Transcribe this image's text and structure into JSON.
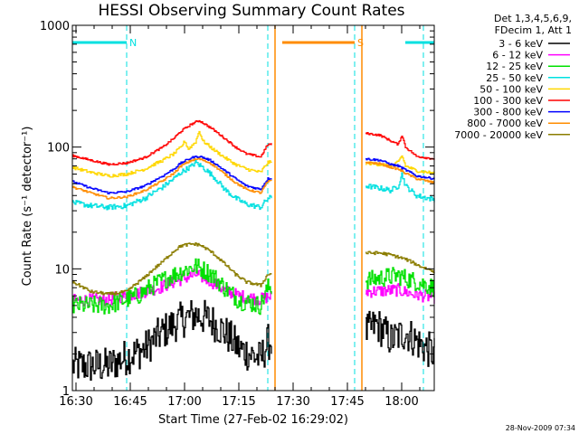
{
  "chart_data": {
    "type": "line",
    "title": "HESSI Observing Summary Count Rates",
    "xlabel": "Start Time (27-Feb-02 16:29:02)",
    "ylabel": "Count Rate (s⁻¹ detector⁻¹)",
    "y_scale": "log",
    "ylim": [
      1,
      1000
    ],
    "xlim_minutes": [
      0,
      100
    ],
    "x_tick_labels": [
      {
        "t": 1,
        "label": "16:30"
      },
      {
        "t": 16,
        "label": "16:45"
      },
      {
        "t": 31,
        "label": "17:00"
      },
      {
        "t": 46,
        "label": "17:15"
      },
      {
        "t": 61,
        "label": "17:30"
      },
      {
        "t": 76,
        "label": "17:45"
      },
      {
        "t": 91,
        "label": "18:00"
      }
    ],
    "y_tick_labels": [
      {
        "v": 1,
        "label": "1"
      },
      {
        "v": 10,
        "label": "10"
      },
      {
        "v": 100,
        "label": "100"
      },
      {
        "v": 1000,
        "label": "1000"
      }
    ],
    "legend_header": [
      "Det 1,3,4,5,6,9,",
      "FDecim 1, Att 1"
    ],
    "legend_position": "right",
    "footer_date": "28-Nov-2009 07:34",
    "gaps": [
      {
        "start": 55,
        "end": 81
      }
    ],
    "night_dashes": [
      15,
      54,
      78,
      97
    ],
    "night_color": "#00e0e0",
    "saa_color": "#ff8c00",
    "saa_lines": [
      56,
      80
    ],
    "flag_bars": [
      {
        "label": "N",
        "start": 0,
        "end": 15,
        "color": "#00e0e0"
      },
      {
        "label": "S",
        "start": 58,
        "end": 78,
        "color": "#ff8c00"
      },
      {
        "label": "",
        "start": 92,
        "end": 100,
        "color": "#00e0e0"
      }
    ],
    "series": [
      {
        "name": "3 - 6 keV",
        "color": "#000000",
        "noise": 0.35,
        "points": [
          [
            0,
            1.6
          ],
          [
            10,
            1.6
          ],
          [
            20,
            2.2
          ],
          [
            26,
            3.2
          ],
          [
            30,
            3.8
          ],
          [
            34,
            4.2
          ],
          [
            38,
            3.8
          ],
          [
            42,
            3
          ],
          [
            46,
            2.2
          ],
          [
            52,
            1.8
          ],
          [
            54,
            2.5
          ],
          [
            81,
            3
          ],
          [
            84,
            3.5
          ],
          [
            88,
            2.6
          ],
          [
            92,
            3
          ],
          [
            96,
            2.4
          ],
          [
            100,
            2.0
          ]
        ]
      },
      {
        "name": "6 - 12 keV",
        "color": "#ff00ff",
        "noise": 0.12,
        "points": [
          [
            0,
            5.5
          ],
          [
            10,
            5.6
          ],
          [
            18,
            6.3
          ],
          [
            24,
            7.0
          ],
          [
            30,
            8.2
          ],
          [
            34,
            9.0
          ],
          [
            38,
            8.0
          ],
          [
            42,
            6.6
          ],
          [
            46,
            6.0
          ],
          [
            52,
            5.6
          ],
          [
            54,
            5.9
          ],
          [
            81,
            6.5
          ],
          [
            86,
            6.6
          ],
          [
            90,
            6.7
          ],
          [
            94,
            6.2
          ],
          [
            100,
            5.8
          ]
        ]
      },
      {
        "name": "12 - 25 keV",
        "color": "#00e000",
        "noise": 0.18,
        "points": [
          [
            0,
            5.0
          ],
          [
            10,
            5.0
          ],
          [
            18,
            6.0
          ],
          [
            24,
            7.8
          ],
          [
            30,
            9.5
          ],
          [
            34,
            10.5
          ],
          [
            38,
            9.2
          ],
          [
            42,
            7.0
          ],
          [
            46,
            5.5
          ],
          [
            52,
            5.0
          ],
          [
            54,
            7.0
          ],
          [
            81,
            8.0
          ],
          [
            86,
            8.5
          ],
          [
            90,
            8.8
          ],
          [
            94,
            8.0
          ],
          [
            100,
            7.0
          ]
        ]
      },
      {
        "name": "25 - 50 keV",
        "color": "#00e0e0",
        "noise": 0.05,
        "points": [
          [
            0,
            35
          ],
          [
            5,
            33
          ],
          [
            10,
            32
          ],
          [
            15,
            33
          ],
          [
            20,
            38
          ],
          [
            25,
            47
          ],
          [
            28,
            55
          ],
          [
            30,
            62
          ],
          [
            33,
            70
          ],
          [
            34,
            75
          ],
          [
            36,
            68
          ],
          [
            39,
            57
          ],
          [
            42,
            45
          ],
          [
            45,
            38
          ],
          [
            48,
            34
          ],
          [
            52,
            32
          ],
          [
            54,
            38
          ],
          [
            81,
            48
          ],
          [
            85,
            46
          ],
          [
            88,
            44
          ],
          [
            90,
            48
          ],
          [
            91,
            60
          ],
          [
            92,
            48
          ],
          [
            95,
            40
          ],
          [
            100,
            37
          ]
        ]
      },
      {
        "name": "50 - 100 keV",
        "color": "#ffd700",
        "noise": 0.03,
        "points": [
          [
            0,
            68
          ],
          [
            5,
            62
          ],
          [
            10,
            58
          ],
          [
            15,
            60
          ],
          [
            20,
            66
          ],
          [
            25,
            78
          ],
          [
            28,
            88
          ],
          [
            30,
            100
          ],
          [
            31,
            112
          ],
          [
            32,
            96
          ],
          [
            34,
            110
          ],
          [
            35,
            135
          ],
          [
            36,
            112
          ],
          [
            39,
            95
          ],
          [
            42,
            82
          ],
          [
            45,
            72
          ],
          [
            48,
            66
          ],
          [
            52,
            62
          ],
          [
            54,
            75
          ],
          [
            81,
            74
          ],
          [
            85,
            72
          ],
          [
            88,
            70
          ],
          [
            90,
            75
          ],
          [
            91,
            85
          ],
          [
            92,
            70
          ],
          [
            95,
            64
          ],
          [
            100,
            61
          ]
        ]
      },
      {
        "name": "100 - 300 keV",
        "color": "#ff0000",
        "noise": 0.02,
        "points": [
          [
            0,
            85
          ],
          [
            5,
            78
          ],
          [
            10,
            72
          ],
          [
            15,
            74
          ],
          [
            20,
            82
          ],
          [
            25,
            100
          ],
          [
            28,
            118
          ],
          [
            30,
            135
          ],
          [
            33,
            155
          ],
          [
            35,
            165
          ],
          [
            38,
            145
          ],
          [
            42,
            118
          ],
          [
            45,
            100
          ],
          [
            48,
            88
          ],
          [
            52,
            83
          ],
          [
            54,
            105
          ],
          [
            81,
            130
          ],
          [
            85,
            125
          ],
          [
            88,
            112
          ],
          [
            90,
            105
          ],
          [
            91,
            125
          ],
          [
            92,
            100
          ],
          [
            95,
            84
          ],
          [
            100,
            80
          ]
        ]
      },
      {
        "name": "300 - 800 keV",
        "color": "#0000ff",
        "noise": 0.02,
        "points": [
          [
            0,
            52
          ],
          [
            5,
            46
          ],
          [
            10,
            42
          ],
          [
            15,
            43
          ],
          [
            20,
            48
          ],
          [
            25,
            58
          ],
          [
            28,
            66
          ],
          [
            30,
            74
          ],
          [
            33,
            82
          ],
          [
            35,
            84
          ],
          [
            38,
            78
          ],
          [
            42,
            64
          ],
          [
            45,
            55
          ],
          [
            48,
            48
          ],
          [
            52,
            45
          ],
          [
            54,
            55
          ],
          [
            81,
            80
          ],
          [
            85,
            78
          ],
          [
            88,
            72
          ],
          [
            90,
            70
          ],
          [
            92,
            65
          ],
          [
            95,
            58
          ],
          [
            100,
            55
          ]
        ]
      },
      {
        "name": "800 - 7000 keV",
        "color": "#ff8c00",
        "noise": 0.02,
        "points": [
          [
            0,
            47
          ],
          [
            5,
            42
          ],
          [
            10,
            38
          ],
          [
            15,
            39
          ],
          [
            20,
            44
          ],
          [
            25,
            53
          ],
          [
            28,
            61
          ],
          [
            30,
            70
          ],
          [
            33,
            78
          ],
          [
            35,
            80
          ],
          [
            38,
            74
          ],
          [
            42,
            60
          ],
          [
            45,
            51
          ],
          [
            48,
            45
          ],
          [
            52,
            42
          ],
          [
            54,
            52
          ],
          [
            81,
            75
          ],
          [
            85,
            73
          ],
          [
            88,
            68
          ],
          [
            90,
            66
          ],
          [
            92,
            61
          ],
          [
            95,
            55
          ],
          [
            100,
            51
          ]
        ]
      },
      {
        "name": "7000 - 20000 keV",
        "color": "#8b7d00",
        "noise": 0.03,
        "points": [
          [
            0,
            7.8
          ],
          [
            5,
            6.5
          ],
          [
            10,
            6.2
          ],
          [
            15,
            6.5
          ],
          [
            20,
            8.5
          ],
          [
            25,
            11.5
          ],
          [
            28,
            14
          ],
          [
            30,
            15.5
          ],
          [
            33,
            16
          ],
          [
            35,
            15.8
          ],
          [
            38,
            14
          ],
          [
            42,
            11
          ],
          [
            45,
            9
          ],
          [
            48,
            7.8
          ],
          [
            52,
            7.3
          ],
          [
            54,
            9
          ],
          [
            81,
            13.5
          ],
          [
            85,
            13.5
          ],
          [
            88,
            13
          ],
          [
            92,
            12
          ],
          [
            96,
            10.5
          ],
          [
            100,
            9.5
          ]
        ]
      }
    ]
  }
}
